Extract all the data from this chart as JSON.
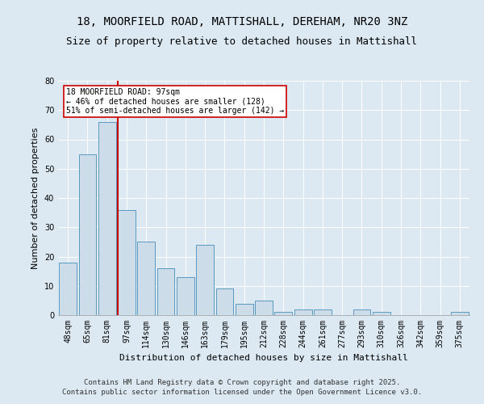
{
  "title": "18, MOORFIELD ROAD, MATTISHALL, DEREHAM, NR20 3NZ",
  "subtitle": "Size of property relative to detached houses in Mattishall",
  "xlabel": "Distribution of detached houses by size in Mattishall",
  "ylabel": "Number of detached properties",
  "bar_labels": [
    "48sqm",
    "65sqm",
    "81sqm",
    "97sqm",
    "114sqm",
    "130sqm",
    "146sqm",
    "163sqm",
    "179sqm",
    "195sqm",
    "212sqm",
    "228sqm",
    "244sqm",
    "261sqm",
    "277sqm",
    "293sqm",
    "310sqm",
    "326sqm",
    "342sqm",
    "359sqm",
    "375sqm"
  ],
  "bar_values": [
    18,
    55,
    66,
    36,
    25,
    16,
    13,
    24,
    9,
    4,
    5,
    1,
    2,
    2,
    0,
    2,
    1,
    0,
    0,
    0,
    1
  ],
  "bar_color": "#ccdde9",
  "bar_edge_color": "#5a99c0",
  "bar_edge_width": 0.7,
  "vline_color": "#cc0000",
  "annotation_text": "18 MOORFIELD ROAD: 97sqm\n← 46% of detached houses are smaller (128)\n51% of semi-detached houses are larger (142) →",
  "annotation_box_color": "#ffffff",
  "annotation_box_edge": "#cc0000",
  "ylim": [
    0,
    80
  ],
  "yticks": [
    0,
    10,
    20,
    30,
    40,
    50,
    60,
    70,
    80
  ],
  "bg_color": "#dce9f2",
  "plot_bg_color": "#dce9f2",
  "title_fontsize": 10,
  "subtitle_fontsize": 9,
  "axis_label_fontsize": 8,
  "tick_fontsize": 7,
  "footnote": "Contains HM Land Registry data © Crown copyright and database right 2025.\nContains public sector information licensed under the Open Government Licence v3.0.",
  "footnote_fontsize": 6.5
}
